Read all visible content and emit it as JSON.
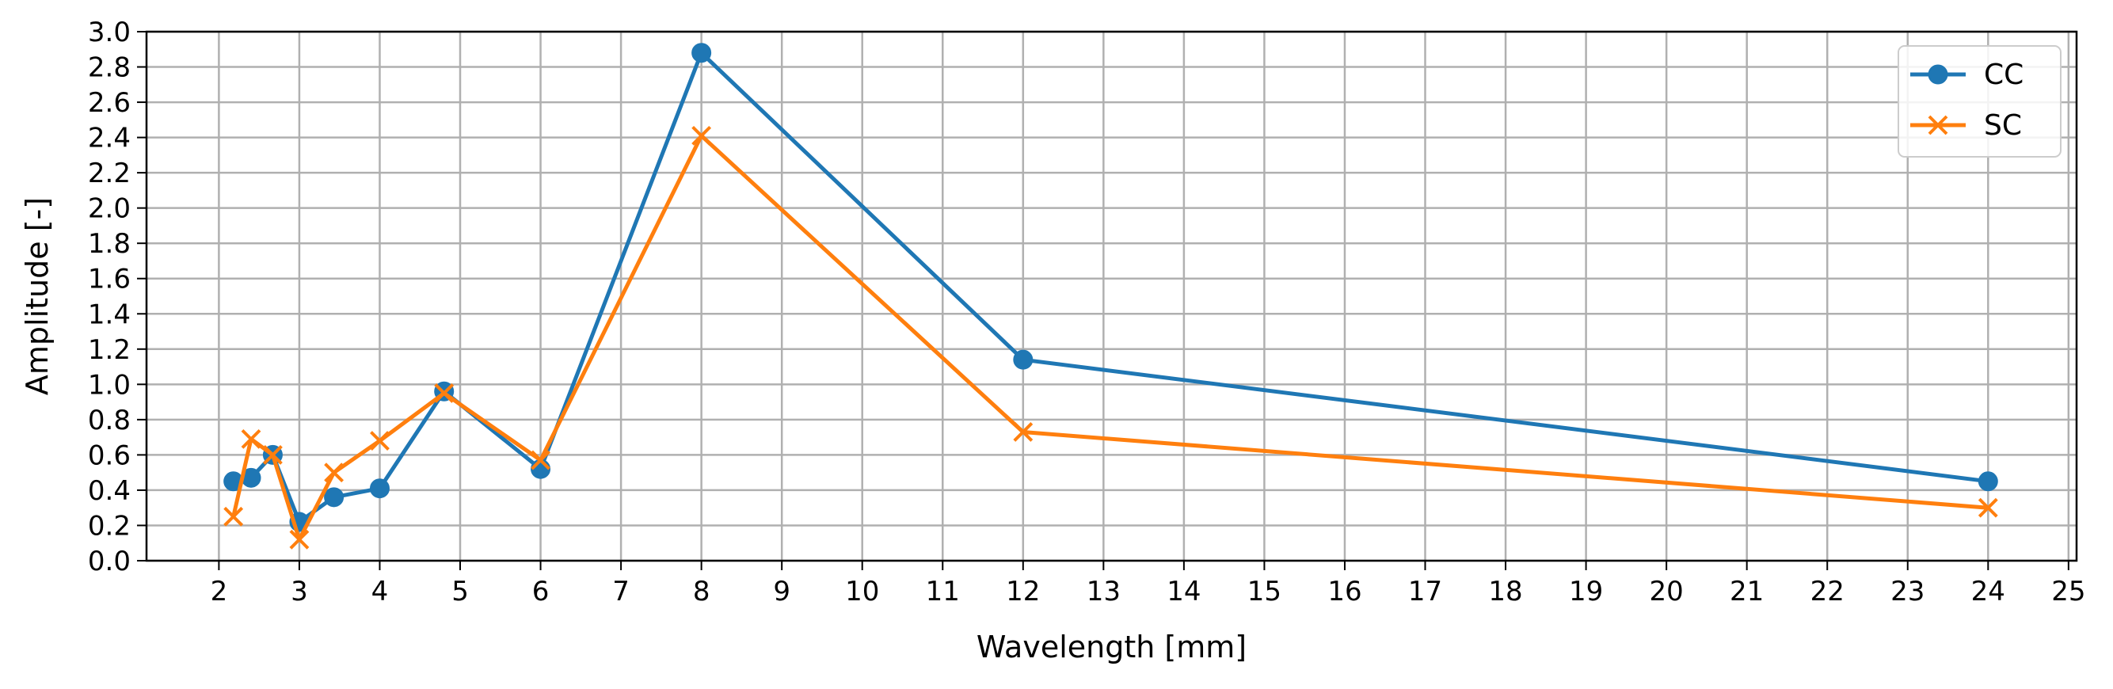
{
  "chart_data": {
    "type": "line",
    "title": "",
    "xlabel": "Wavelength [mm]",
    "ylabel": "Amplitude [-]",
    "xlim": [
      1.1,
      25.1
    ],
    "ylim": [
      0.0,
      3.0
    ],
    "xticks": [
      2,
      3,
      4,
      5,
      6,
      7,
      8,
      9,
      10,
      11,
      12,
      13,
      14,
      15,
      16,
      17,
      18,
      19,
      20,
      21,
      22,
      23,
      24,
      25
    ],
    "yticks": [
      "0.0",
      "0.2",
      "0.4",
      "0.6",
      "0.8",
      "1.0",
      "1.2",
      "1.4",
      "1.6",
      "1.8",
      "2.0",
      "2.2",
      "2.4",
      "2.6",
      "2.8",
      "3.0"
    ],
    "grid": true,
    "legend_position": "top-right",
    "series": [
      {
        "name": "CC",
        "color": "#1f77b4",
        "marker": "circle",
        "x": [
          2.18,
          2.4,
          2.67,
          3.0,
          3.43,
          4.0,
          4.8,
          6.0,
          8.0,
          12.0,
          24.0
        ],
        "y": [
          0.45,
          0.47,
          0.6,
          0.22,
          0.36,
          0.41,
          0.96,
          0.52,
          2.88,
          1.14,
          0.45
        ]
      },
      {
        "name": "SC",
        "color": "#ff7f0e",
        "marker": "x",
        "x": [
          2.18,
          2.4,
          2.67,
          3.0,
          3.43,
          4.0,
          4.8,
          6.0,
          8.0,
          12.0,
          24.0
        ],
        "y": [
          0.25,
          0.69,
          0.6,
          0.12,
          0.5,
          0.68,
          0.95,
          0.57,
          2.41,
          0.73,
          0.3
        ]
      }
    ]
  }
}
